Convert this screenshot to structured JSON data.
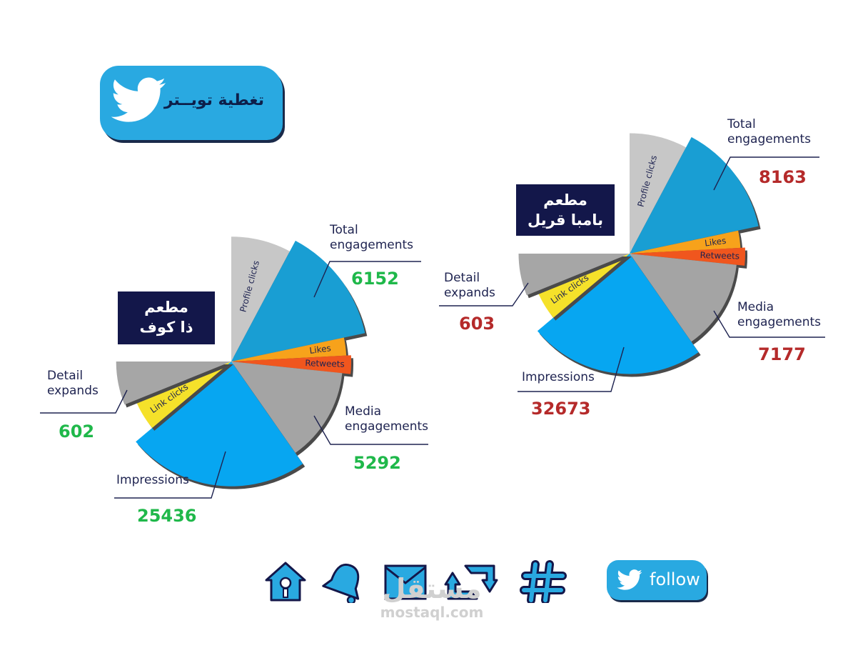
{
  "badge": {
    "title": "تغطية تويــتر",
    "icon": "twitter-bird-icon"
  },
  "colors": {
    "total": "#199ed3",
    "likes": "#f7a21b",
    "retweets": "#f0561e",
    "media": "#a4a4a4",
    "impressions": "#07a6f1",
    "link": "#f5e12a",
    "detail": "#a6a6a6",
    "profile": "#c7c7c7",
    "badge": "#29a9e1",
    "navy": "#13174a"
  },
  "charts": {
    "left": {
      "restaurant": [
        "مطعم",
        "ذا كوف"
      ],
      "slice_labels": {
        "profile": "Profile clicks",
        "likes": "Likes",
        "retweets": "Retweets",
        "link": "Link clicks"
      },
      "callouts": {
        "total": {
          "label": [
            "Total",
            "engagements"
          ],
          "value": "6152"
        },
        "media": {
          "label": [
            "Media",
            "engagements"
          ],
          "value": "5292"
        },
        "impressions": {
          "label": [
            "Impressions"
          ],
          "value": "25436"
        },
        "detail": {
          "label": [
            "Detail",
            "expands"
          ],
          "value": "602"
        }
      }
    },
    "right": {
      "restaurant": [
        "مطعم",
        "بامبا قريل"
      ],
      "slice_labels": {
        "profile": "Profile clicks",
        "likes": "Likes",
        "retweets": "Retweets",
        "link": "Link clicks"
      },
      "callouts": {
        "total": {
          "label": [
            "Total",
            "engagements"
          ],
          "value": "8163"
        },
        "media": {
          "label": [
            "Media",
            "engagements"
          ],
          "value": "7177"
        },
        "impressions": {
          "label": [
            "Impressions"
          ],
          "value": "32673"
        },
        "detail": {
          "label": [
            "Detail",
            "expands"
          ],
          "value": "603"
        }
      }
    }
  },
  "chart_data": [
    {
      "type": "pie",
      "title": "",
      "categories": [
        "Total engagements",
        "Media engagements",
        "Impressions",
        "Detail expands"
      ],
      "values": [
        6152,
        5292,
        25436,
        602
      ]
    },
    {
      "type": "pie",
      "title": "",
      "categories": [
        "Total engagements",
        "Media engagements",
        "Impressions",
        "Detail expands"
      ],
      "values": [
        8163,
        7177,
        32673,
        603
      ]
    }
  ],
  "nav_icons": [
    "home-icon",
    "bell-icon",
    "mail-icon",
    "retweet-icon",
    "hashtag-icon"
  ],
  "follow": {
    "label": "follow",
    "icon": "twitter-bird-icon"
  },
  "watermark": {
    "arabic": "مستقل",
    "latin": "mostaql.com"
  }
}
